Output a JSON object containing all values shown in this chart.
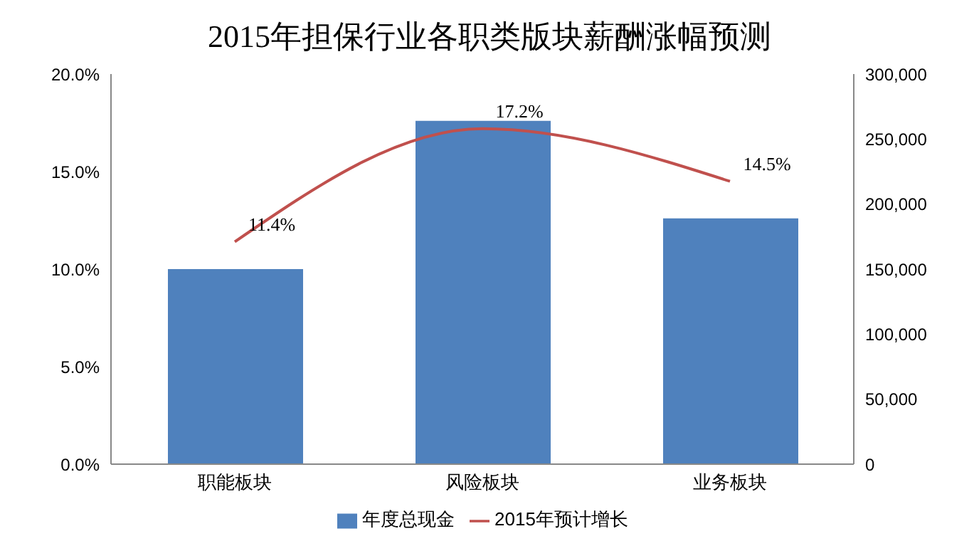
{
  "chart_data": {
    "type": "bar",
    "title": "2015年担保行业各职类版块薪酬涨幅预测",
    "categories": [
      "职能板块",
      "风险板块",
      "业务板块"
    ],
    "series": [
      {
        "name": "年度总现金",
        "axis": "y2",
        "color": "#4f81bd",
        "values": [
          150000,
          264000,
          189000
        ]
      },
      {
        "name": "2015年预计增长",
        "type": "line",
        "color": "#c0504d",
        "values": [
          11.4,
          17.2,
          14.5
        ],
        "value_labels": [
          "11.4%",
          "17.2%",
          "14.5%"
        ]
      }
    ],
    "ylim": [
      0,
      20
    ],
    "yticks": [
      {
        "value": 0,
        "label": "0.0%"
      },
      {
        "value": 5,
        "label": "5.0%"
      },
      {
        "value": 10,
        "label": "10.0%"
      },
      {
        "value": 15,
        "label": "15.0%"
      },
      {
        "value": 20,
        "label": "20.0%"
      }
    ],
    "y2lim": [
      0,
      300000
    ],
    "y2ticks": [
      0,
      {
        "value": 50000,
        "label": "50,000"
      },
      {
        "value": 100000,
        "label": "100,000"
      },
      {
        "value": 150000,
        "label": "150,000"
      },
      {
        "value": 200000,
        "label": "200,000"
      },
      {
        "value": 250000,
        "label": "250,000"
      },
      {
        "value": 300000,
        "label": "300,000"
      }
    ],
    "legend": "bottom",
    "marker": "none"
  }
}
